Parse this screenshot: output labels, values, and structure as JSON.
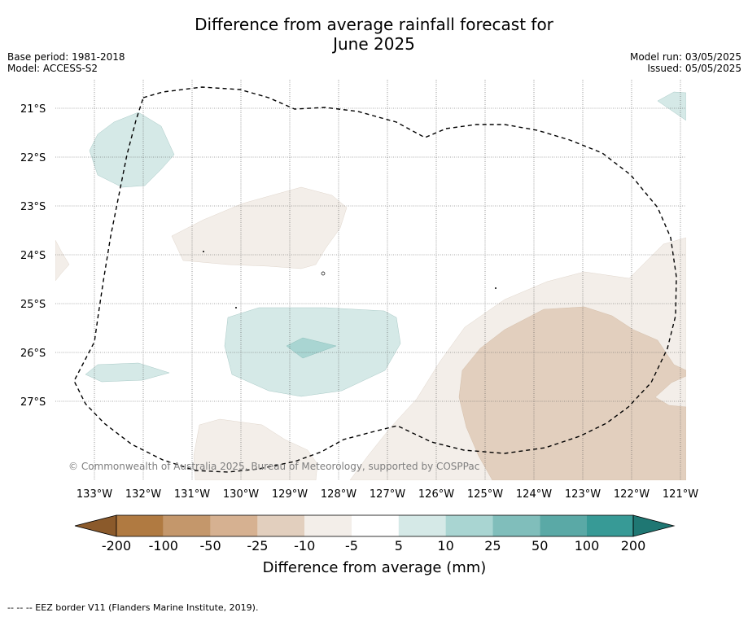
{
  "title": {
    "line1": "Difference from average rainfall forecast for",
    "line2": "June 2025"
  },
  "info": {
    "base_period": "Base period: 1981-2018",
    "model": "Model: ACCESS-S2",
    "model_run": "Model run: 03/05/2025",
    "issued": "Issued: 05/05/2025"
  },
  "map": {
    "lat_labels": [
      "21°S",
      "22°S",
      "23°S",
      "24°S",
      "25°S",
      "26°S",
      "27°S"
    ],
    "lon_labels": [
      "133°W",
      "132°W",
      "131°W",
      "130°W",
      "129°W",
      "128°W",
      "127°W",
      "126°W",
      "125°W",
      "124°W",
      "123°W",
      "122°W",
      "121°W"
    ],
    "copyright": "© Commonwealth of Australia 2025, Bureau of Meteorology, supported by COSPPac",
    "eez_line_style": "dashed black",
    "colors": {
      "lt_-10_to_-5": "#f3eee9",
      "lt_-25_to_-10": "#e2cfbe",
      "gt_5_to_10": "#d5e9e7",
      "gt_10_to_25": "#a9d5d2"
    }
  },
  "colorbar": {
    "title": "Difference from average (mm)",
    "labels": [
      "-200",
      "-100",
      "-50",
      "-25",
      "-10",
      "-5",
      "5",
      "10",
      "25",
      "50",
      "100",
      "200"
    ],
    "colors": [
      "#8b5a2b",
      "#b07a41",
      "#c4976b",
      "#d6b191",
      "#e2cfbe",
      "#f3eee9",
      "#ffffff",
      "#d5e9e7",
      "#a9d5d2",
      "#80bebb",
      "#5aa9a6",
      "#379a96",
      "#1f7773"
    ]
  },
  "footer": {
    "legend": "-- -- -- EEZ border V11 (Flanders Marine Institute, 2019)."
  }
}
